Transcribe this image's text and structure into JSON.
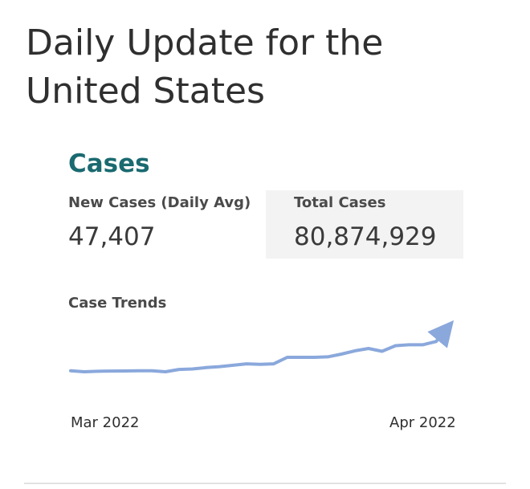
{
  "page": {
    "title": "Daily Update for the United States"
  },
  "cases": {
    "section_title": "Cases",
    "new_cases": {
      "label": "New Cases (Daily Avg)",
      "value": "47,407"
    },
    "total_cases": {
      "label": "Total Cases",
      "value": "80,874,929"
    }
  },
  "trends": {
    "title": "Case Trends",
    "line_color": "#8aa8dc",
    "x_start_label": "Mar 2022",
    "x_end_label": "Apr 2022"
  },
  "chart_data": {
    "type": "line",
    "title": "Case Trends",
    "xlabel": "",
    "ylabel": "",
    "x_tick_labels": [
      "Mar 2022",
      "Apr 2022"
    ],
    "grid": false,
    "legend": "none",
    "ylim": [
      0,
      100
    ],
    "series": [
      {
        "values": [
          2,
          0,
          1,
          1.5,
          1.8,
          2,
          2,
          0,
          5,
          6,
          9,
          11,
          14,
          17,
          16,
          17,
          31,
          31,
          31,
          32,
          38,
          45,
          50,
          44,
          56,
          58,
          58,
          65,
          100
        ]
      }
    ]
  }
}
